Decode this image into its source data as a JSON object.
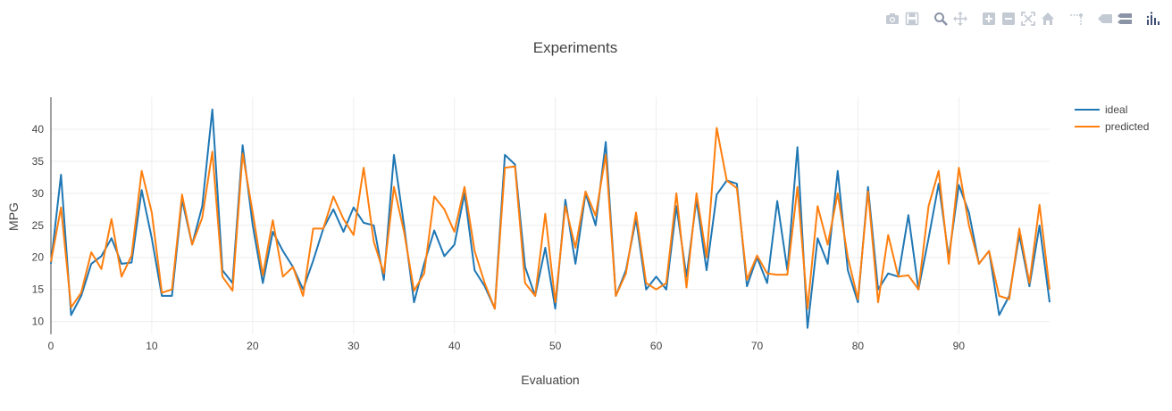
{
  "modebar": {
    "buttons": [
      {
        "name": "camera-icon",
        "color": "#c4cad3"
      },
      {
        "name": "save-icon",
        "color": "#c4cad3"
      },
      {
        "name": "zoom-icon",
        "color": "#8a94a6"
      },
      {
        "name": "pan-icon",
        "color": "#c4cad3"
      },
      {
        "name": "zoom-in-icon",
        "color": "#c4cad3"
      },
      {
        "name": "zoom-out-icon",
        "color": "#c4cad3"
      },
      {
        "name": "autoscale-icon",
        "color": "#c4cad3"
      },
      {
        "name": "home-icon",
        "color": "#c4cad3"
      },
      {
        "name": "spike-lines-icon",
        "color": "#c4cad3"
      },
      {
        "name": "hover-closest-icon",
        "color": "#c4cad3"
      },
      {
        "name": "hover-compare-icon",
        "color": "#8a94a6"
      },
      {
        "name": "plotly-logo-icon",
        "color": "#3f4f75"
      }
    ]
  },
  "chart_data": {
    "type": "line",
    "title": "Experiments",
    "xlabel": "Evaluation",
    "ylabel": "MPG",
    "xlim": [
      0,
      99
    ],
    "ylim": [
      8,
      45
    ],
    "xticks": [
      0,
      10,
      20,
      30,
      40,
      50,
      60,
      70,
      80,
      90
    ],
    "yticks": [
      10,
      15,
      20,
      25,
      30,
      35,
      40
    ],
    "grid": true,
    "legend_position": "top-right",
    "x": [
      0,
      1,
      2,
      3,
      4,
      5,
      6,
      7,
      8,
      9,
      10,
      11,
      12,
      13,
      14,
      15,
      16,
      17,
      18,
      19,
      20,
      21,
      22,
      23,
      24,
      25,
      26,
      27,
      28,
      29,
      30,
      31,
      32,
      33,
      34,
      35,
      36,
      37,
      38,
      39,
      40,
      41,
      42,
      43,
      44,
      45,
      46,
      47,
      48,
      49,
      50,
      51,
      52,
      53,
      54,
      55,
      56,
      57,
      58,
      59,
      60,
      61,
      62,
      63,
      64,
      65,
      66,
      67,
      68,
      69,
      70,
      71,
      72,
      73,
      74,
      75,
      76,
      77,
      78,
      79,
      80,
      81,
      82,
      83,
      84,
      85,
      86,
      87,
      88,
      89,
      90,
      91,
      92,
      93,
      94,
      95,
      96,
      97,
      98,
      99
    ],
    "series": [
      {
        "name": "ideal",
        "color": "#1f77b4",
        "values": [
          19.0,
          32.9,
          11.0,
          14.0,
          19.0,
          20.2,
          23.0,
          19.0,
          19.2,
          30.5,
          23.0,
          14.0,
          14.0,
          29.0,
          22.0,
          28.0,
          43.1,
          18.0,
          16.0,
          37.5,
          25.0,
          16.0,
          24.0,
          21.0,
          18.5,
          15.0,
          19.5,
          24.5,
          27.5,
          24.0,
          27.8,
          25.4,
          25.0,
          16.5,
          36.0,
          25.0,
          13.0,
          19.0,
          24.2,
          20.2,
          22.0,
          30.0,
          18.0,
          15.5,
          12.0,
          36.0,
          34.5,
          18.5,
          14.0,
          21.5,
          12.0,
          29.0,
          19.0,
          30.0,
          25.0,
          38.0,
          14.0,
          18.0,
          26.0,
          15.0,
          17.0,
          15.0,
          28.0,
          17.0,
          29.0,
          18.0,
          29.8,
          32.0,
          31.5,
          15.5,
          20.0,
          16.0,
          28.8,
          18.0,
          37.2,
          9.0,
          23.0,
          19.0,
          33.5,
          18.0,
          13.0,
          31.0,
          15.0,
          17.5,
          17.0,
          26.6,
          15.0,
          23.0,
          31.5,
          20.0,
          31.3,
          27.0,
          19.0,
          21.0,
          11.0,
          14.0,
          23.5,
          15.5,
          25.0,
          13.0
        ]
      },
      {
        "name": "predicted",
        "color": "#ff7f0e",
        "values": [
          19.3,
          27.8,
          12.2,
          14.5,
          20.8,
          18.2,
          26.0,
          17.0,
          20.3,
          33.5,
          27.0,
          14.5,
          15.0,
          29.8,
          22.0,
          26.2,
          36.5,
          17.0,
          14.8,
          36.2,
          27.0,
          17.2,
          25.8,
          17.0,
          18.5,
          14.0,
          24.5,
          24.5,
          29.5,
          26.0,
          23.5,
          34.0,
          22.5,
          17.5,
          31.0,
          24.0,
          14.8,
          17.5,
          29.5,
          27.5,
          24.0,
          31.0,
          21.0,
          16.0,
          12.0,
          34.0,
          34.2,
          16.0,
          14.0,
          26.8,
          13.0,
          28.0,
          21.5,
          30.3,
          26.5,
          36.0,
          14.0,
          17.5,
          27.0,
          16.0,
          15.0,
          16.0,
          30.0,
          15.3,
          30.0,
          20.0,
          40.2,
          32.0,
          30.8,
          16.5,
          20.3,
          17.5,
          17.3,
          17.3,
          31.0,
          12.0,
          28.0,
          22.0,
          30.0,
          20.0,
          13.5,
          30.3,
          13.0,
          23.5,
          17.0,
          17.2,
          15.0,
          28.0,
          33.5,
          19.0,
          34.0,
          25.0,
          19.0,
          21.0,
          14.0,
          13.5,
          24.5,
          16.0,
          28.2,
          15.0
        ]
      }
    ]
  }
}
